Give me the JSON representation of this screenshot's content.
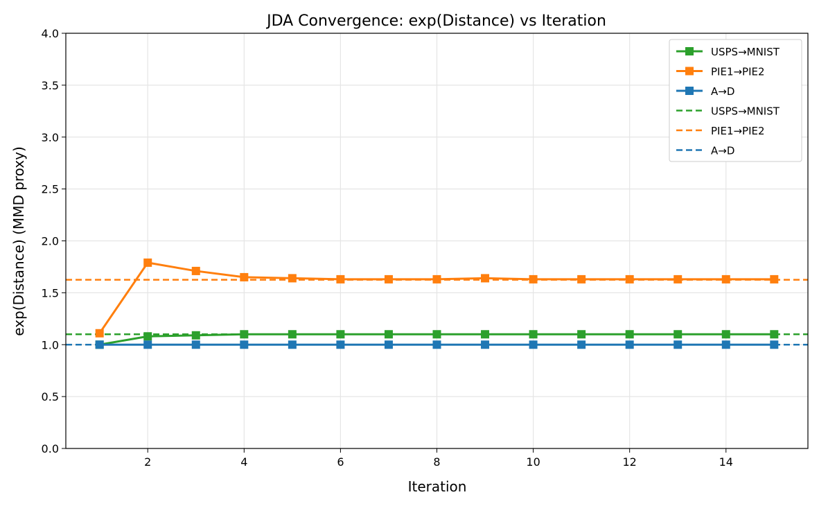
{
  "chart_data": {
    "type": "line",
    "title": "JDA Convergence: exp(Distance) vs Iteration",
    "xlabel": "Iteration",
    "ylabel": "exp(Distance) (MMD proxy)",
    "xlim": [
      0.3,
      15.7
    ],
    "ylim": [
      0,
      4.0
    ],
    "xticks": [
      2,
      4,
      6,
      8,
      10,
      12,
      14
    ],
    "yticks": [
      "0.0",
      "0.5",
      "1.0",
      "1.5",
      "2.0",
      "2.5",
      "3.0",
      "3.5",
      "4.0"
    ],
    "grid": true,
    "legend_position": "top-right",
    "x": [
      1,
      2,
      3,
      4,
      5,
      6,
      7,
      8,
      9,
      10,
      11,
      12,
      13,
      14,
      15
    ],
    "series": [
      {
        "name": "USPS→MNIST",
        "color": "#2ca02c",
        "style": "solid-square-markers",
        "values": [
          1.0,
          1.08,
          1.09,
          1.1,
          1.1,
          1.1,
          1.1,
          1.1,
          1.1,
          1.1,
          1.1,
          1.1,
          1.1,
          1.1,
          1.1
        ]
      },
      {
        "name": "PIE1→PIE2",
        "color": "#ff7f0e",
        "style": "solid-square-markers",
        "values": [
          1.11,
          1.79,
          1.71,
          1.65,
          1.64,
          1.63,
          1.63,
          1.63,
          1.64,
          1.63,
          1.63,
          1.63,
          1.63,
          1.63,
          1.63
        ]
      },
      {
        "name": "A→D",
        "color": "#1f77b4",
        "style": "solid-square-markers",
        "values": [
          1.0,
          1.0,
          1.0,
          1.0,
          1.0,
          1.0,
          1.0,
          1.0,
          1.0,
          1.0,
          1.0,
          1.0,
          1.0,
          1.0,
          1.0
        ]
      }
    ],
    "reference_lines": [
      {
        "name": "USPS→MNIST",
        "color": "#2ca02c",
        "style": "dashed",
        "value": 1.1
      },
      {
        "name": "PIE1→PIE2",
        "color": "#ff7f0e",
        "style": "dashed",
        "value": 1.625
      },
      {
        "name": "A→D",
        "color": "#1f77b4",
        "style": "dashed",
        "value": 1.0
      }
    ]
  }
}
